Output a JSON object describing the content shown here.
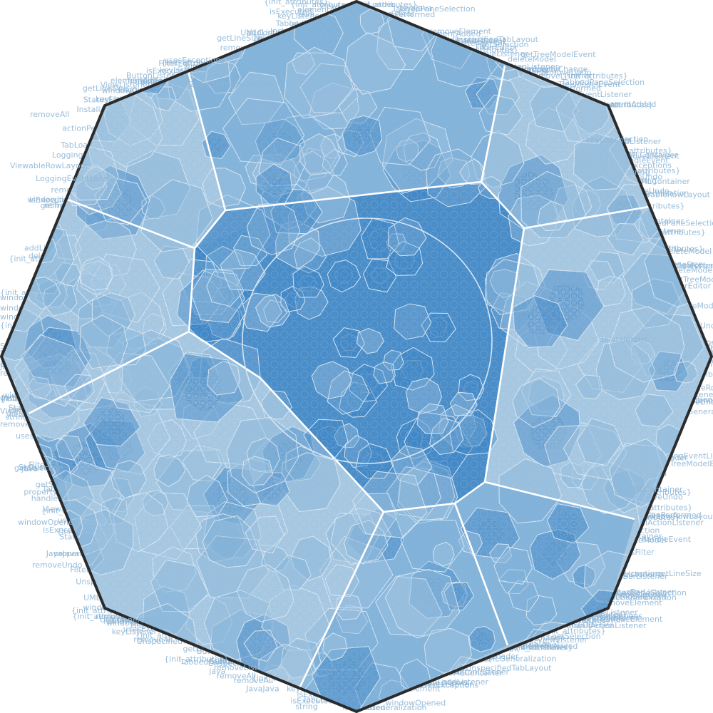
{
  "diagram": {
    "type": "voronoi-treemap",
    "colors": {
      "background": "#ffffff",
      "cell_fill_light": "#a9c9e2",
      "cell_fill_mid": "#7fb0d8",
      "cell_fill_dark": "#3f86c5",
      "cell_stroke": "#d8e7f3",
      "inner_stroke": "#6f9fc8",
      "top_boundary": "#ffffff",
      "outline": "#2b2b2b",
      "label": "#8fb6d6"
    },
    "outline": {
      "shape": "octagon"
    },
    "regions": [
      {
        "name": "center",
        "shade": "dark"
      },
      {
        "name": "top",
        "shade": "mid"
      },
      {
        "name": "top-right",
        "shade": "light"
      },
      {
        "name": "right",
        "shade": "light"
      },
      {
        "name": "bottom-right",
        "shade": "mid"
      },
      {
        "name": "bottom",
        "shade": "mid"
      },
      {
        "name": "bottom-left",
        "shade": "light"
      },
      {
        "name": "left",
        "shade": "light"
      },
      {
        "name": "top-left",
        "shade": "light"
      },
      {
        "name": "upper-middle-left",
        "shade": "dark"
      }
    ],
    "labels": [
      "{init_attributes}",
      "isExecuted",
      "JavaJava",
      "usesExceptions",
      "removeAll",
      "ViewableRowLayout",
      "LoggingEventListener",
      "TabbedPaneSelection",
      "getTreeModelEvent",
      "{init_attributes}",
      "keyListener",
      "string",
      "getSelection",
      "windowOpened",
      "removeUndo",
      "UMLGeneralization",
      "{init_attributes}",
      "removeListener",
      "addListener",
      "elementAdded",
      "removeElement",
      "handleEvent",
      "getLineSize",
      "UMLContainer",
      "deleteModel",
      "FilterEditor",
      "StatusFilter",
      "{init_attributes}",
      "actionPerformed",
      "InstallActionListener",
      "windowListener",
      "ButtonListener",
      "StatusBarListener",
      "ViewListener",
      "propertyChange",
      "TabLoader",
      "{init_attributes}",
      "UnspecifiedTabLayout",
      "java"
    ]
  }
}
